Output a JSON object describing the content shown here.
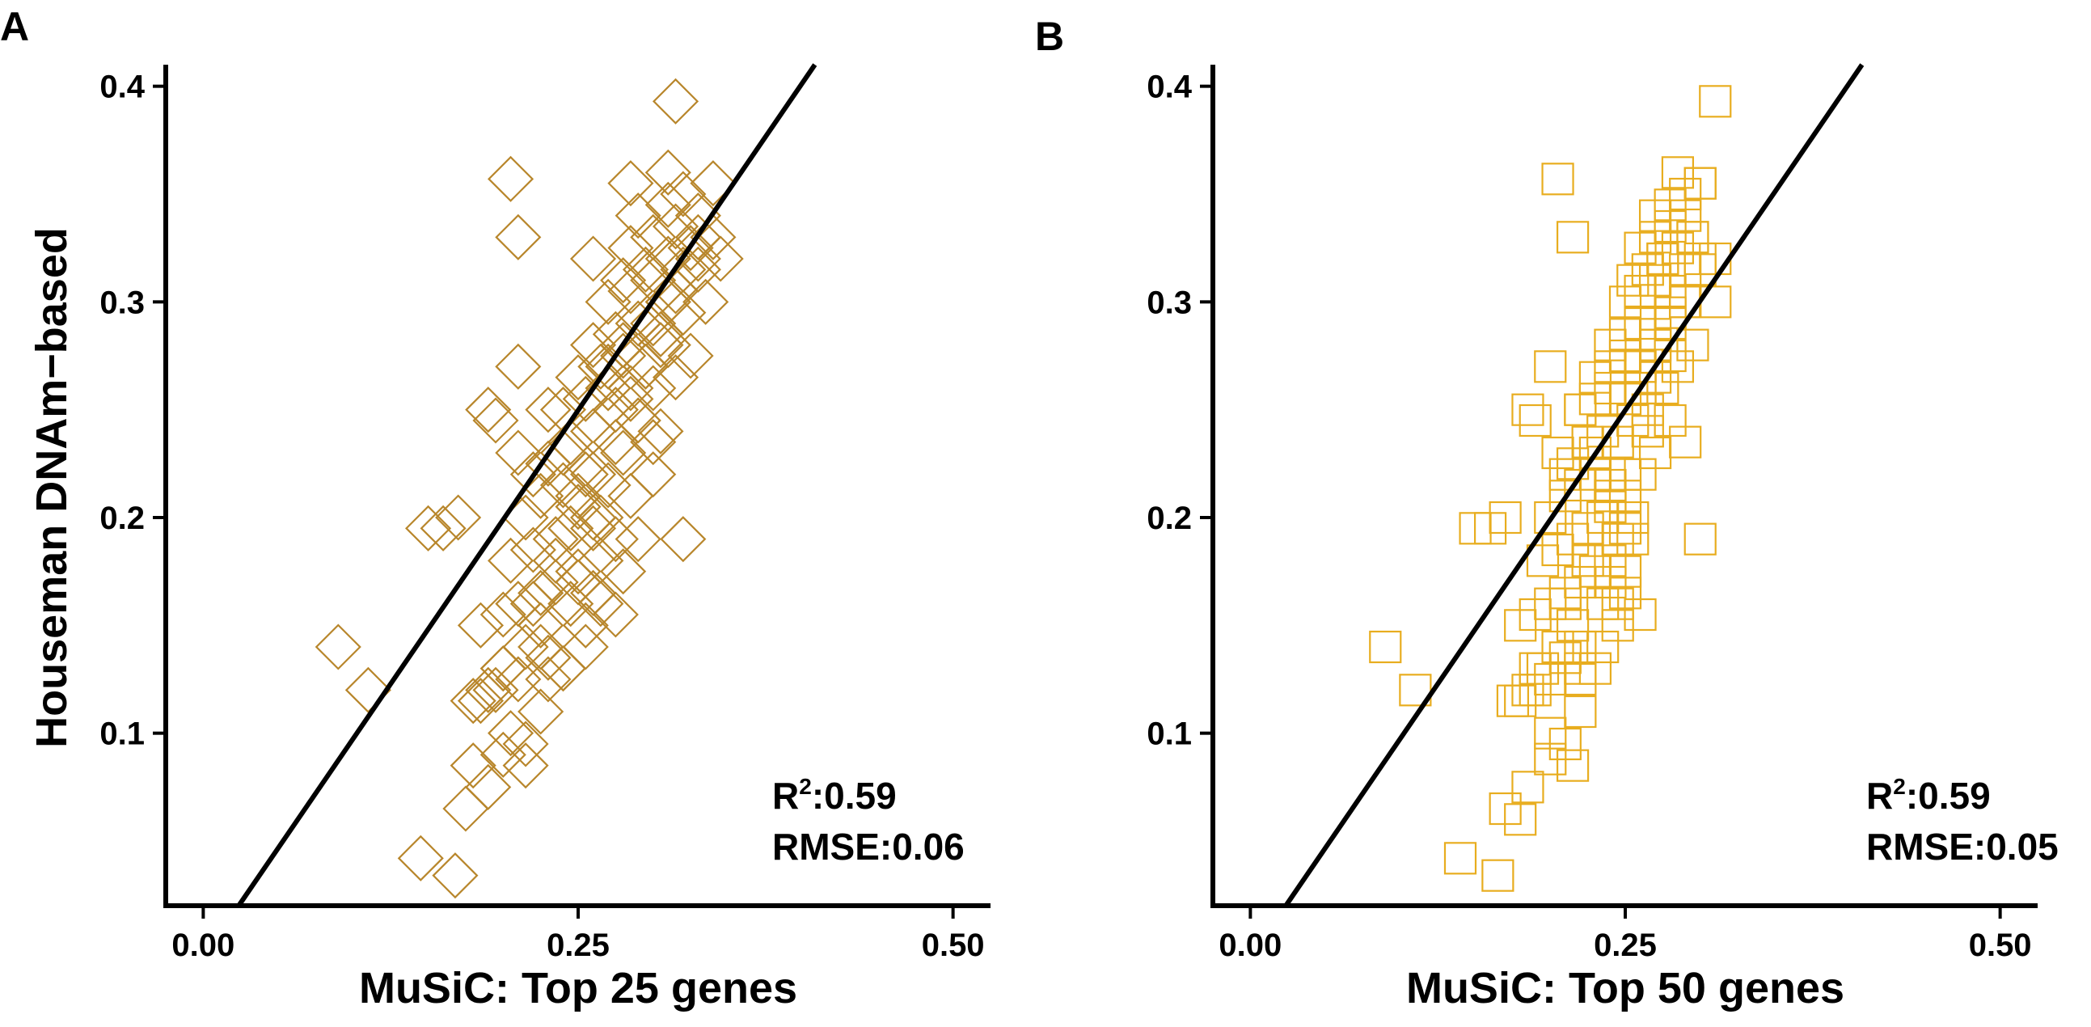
{
  "figure": {
    "ylabel": "Houseman DNAm−based",
    "colors": {
      "axis": "#000000",
      "text": "#000000",
      "fit_line": "#000000"
    }
  },
  "chart_data": [
    {
      "type": "scatter",
      "panel_label": "A",
      "xlabel": "MuSiC: Top 25 genes",
      "ylabel": "Houseman DNAm−based",
      "xlim": [
        -0.025,
        0.525
      ],
      "ylim": [
        0.02,
        0.41
      ],
      "xticks": [
        0.0,
        0.25,
        0.5
      ],
      "xtick_labels": [
        "0.00",
        "0.25",
        "0.50"
      ],
      "yticks": [
        0.1,
        0.2,
        0.3,
        0.4
      ],
      "ytick_labels": [
        "0.1",
        "0.2",
        "0.3",
        "0.4"
      ],
      "marker": "diamond-open",
      "marker_color": "#b8862b",
      "fit_line": {
        "intercept": -0.004,
        "slope": 1.015
      },
      "annotation": {
        "r2_label": "R",
        "r2_sup": "2",
        "r2_value": ":0.59",
        "rmse": "RMSE:0.06"
      },
      "grid": false,
      "x": [
        0.09,
        0.11,
        0.145,
        0.168,
        0.175,
        0.18,
        0.19,
        0.2,
        0.215,
        0.225,
        0.18,
        0.19,
        0.2,
        0.21,
        0.23,
        0.24,
        0.255,
        0.265,
        0.185,
        0.2,
        0.21,
        0.225,
        0.235,
        0.25,
        0.265,
        0.28,
        0.205,
        0.22,
        0.235,
        0.245,
        0.26,
        0.275,
        0.29,
        0.215,
        0.225,
        0.24,
        0.255,
        0.27,
        0.285,
        0.3,
        0.21,
        0.23,
        0.245,
        0.26,
        0.275,
        0.29,
        0.305,
        0.32,
        0.24,
        0.255,
        0.27,
        0.285,
        0.3,
        0.315,
        0.25,
        0.265,
        0.28,
        0.295,
        0.31,
        0.325,
        0.26,
        0.275,
        0.29,
        0.305,
        0.32,
        0.335,
        0.27,
        0.285,
        0.3,
        0.315,
        0.33,
        0.345,
        0.28,
        0.295,
        0.31,
        0.325,
        0.34,
        0.285,
        0.3,
        0.315,
        0.33,
        0.29,
        0.31,
        0.32,
        0.34,
        0.31,
        0.33,
        0.315,
        0.205,
        0.21,
        0.285,
        0.26,
        0.31,
        0.16,
        0.15,
        0.19,
        0.195,
        0.17,
        0.22,
        0.23,
        0.21,
        0.24,
        0.25,
        0.26,
        0.235,
        0.245,
        0.255,
        0.275,
        0.265,
        0.28,
        0.29,
        0.3,
        0.27,
        0.26,
        0.25,
        0.225,
        0.215,
        0.2,
        0.195,
        0.185,
        0.205,
        0.215,
        0.225,
        0.24,
        0.23,
        0.22,
        0.25,
        0.26,
        0.27,
        0.28,
        0.3,
        0.31,
        0.32,
        0.33,
        0.295,
        0.305,
        0.285,
        0.275
      ],
      "y": [
        0.14,
        0.12,
        0.042,
        0.034,
        0.065,
        0.085,
        0.075,
        0.09,
        0.085,
        0.11,
        0.115,
        0.12,
        0.13,
        0.125,
        0.135,
        0.13,
        0.14,
        0.16,
        0.15,
        0.155,
        0.16,
        0.165,
        0.17,
        0.175,
        0.18,
        0.175,
        0.18,
        0.185,
        0.19,
        0.195,
        0.2,
        0.19,
        0.19,
        0.2,
        0.21,
        0.215,
        0.22,
        0.215,
        0.21,
        0.22,
        0.23,
        0.225,
        0.235,
        0.24,
        0.235,
        0.245,
        0.24,
        0.19,
        0.25,
        0.255,
        0.26,
        0.255,
        0.26,
        0.265,
        0.265,
        0.27,
        0.275,
        0.27,
        0.28,
        0.275,
        0.28,
        0.285,
        0.29,
        0.285,
        0.295,
        0.3,
        0.3,
        0.305,
        0.31,
        0.305,
        0.315,
        0.32,
        0.31,
        0.315,
        0.32,
        0.325,
        0.33,
        0.325,
        0.33,
        0.335,
        0.34,
        0.34,
        0.345,
        0.35,
        0.355,
        0.36,
        0.33,
        0.393,
        0.357,
        0.33,
        0.355,
        0.32,
        0.3,
        0.195,
        0.195,
        0.25,
        0.245,
        0.2,
        0.22,
        0.25,
        0.27,
        0.23,
        0.205,
        0.195,
        0.18,
        0.16,
        0.15,
        0.155,
        0.2,
        0.23,
        0.245,
        0.235,
        0.26,
        0.22,
        0.21,
        0.15,
        0.14,
        0.13,
        0.12,
        0.115,
        0.1,
        0.095,
        0.14,
        0.13,
        0.125,
        0.16,
        0.17,
        0.165,
        0.27,
        0.28,
        0.29,
        0.3,
        0.315,
        0.32,
        0.27,
        0.28,
        0.26,
        0.25
      ]
    },
    {
      "type": "scatter",
      "panel_label": "B",
      "xlabel": "MuSiC: Top 50 genes",
      "ylabel": "",
      "xlim": [
        -0.025,
        0.525
      ],
      "ylim": [
        0.02,
        0.41
      ],
      "xticks": [
        0.0,
        0.25,
        0.5
      ],
      "xtick_labels": [
        "0.00",
        "0.25",
        "0.50"
      ],
      "yticks": [
        0.1,
        0.2,
        0.3,
        0.4
      ],
      "ytick_labels": [
        "0.1",
        "0.2",
        "0.3",
        "0.4"
      ],
      "marker": "square-open",
      "marker_color": "#e8ad1f",
      "fit_line": {
        "intercept": -0.004,
        "slope": 1.015
      },
      "annotation": {
        "r2_label": "R",
        "r2_sup": "2",
        "r2_value": ":0.59",
        "rmse": "RMSE:0.05"
      },
      "grid": false,
      "x": [
        0.09,
        0.11,
        0.14,
        0.165,
        0.17,
        0.18,
        0.185,
        0.2,
        0.215,
        0.22,
        0.175,
        0.185,
        0.19,
        0.2,
        0.21,
        0.22,
        0.235,
        0.245,
        0.18,
        0.19,
        0.2,
        0.21,
        0.22,
        0.23,
        0.24,
        0.25,
        0.195,
        0.205,
        0.215,
        0.225,
        0.235,
        0.245,
        0.255,
        0.2,
        0.21,
        0.22,
        0.23,
        0.24,
        0.25,
        0.26,
        0.205,
        0.215,
        0.225,
        0.235,
        0.245,
        0.255,
        0.265,
        0.3,
        0.22,
        0.23,
        0.24,
        0.25,
        0.26,
        0.27,
        0.23,
        0.24,
        0.25,
        0.26,
        0.27,
        0.28,
        0.24,
        0.25,
        0.26,
        0.27,
        0.28,
        0.29,
        0.25,
        0.26,
        0.27,
        0.28,
        0.29,
        0.3,
        0.255,
        0.265,
        0.275,
        0.285,
        0.295,
        0.26,
        0.27,
        0.28,
        0.29,
        0.27,
        0.28,
        0.29,
        0.3,
        0.285,
        0.295,
        0.31,
        0.205,
        0.215,
        0.3,
        0.275,
        0.31,
        0.15,
        0.16,
        0.185,
        0.19,
        0.17,
        0.21,
        0.22,
        0.2,
        0.23,
        0.24,
        0.25,
        0.225,
        0.235,
        0.245,
        0.26,
        0.255,
        0.27,
        0.28,
        0.29,
        0.26,
        0.25,
        0.24,
        0.215,
        0.205,
        0.195,
        0.19,
        0.18,
        0.2,
        0.21,
        0.22,
        0.23,
        0.22,
        0.21,
        0.24,
        0.25,
        0.26,
        0.27,
        0.28,
        0.29,
        0.3,
        0.31,
        0.285,
        0.295,
        0.275,
        0.265
      ],
      "y": [
        0.14,
        0.12,
        0.042,
        0.034,
        0.065,
        0.06,
        0.075,
        0.088,
        0.085,
        0.11,
        0.115,
        0.12,
        0.13,
        0.125,
        0.135,
        0.13,
        0.14,
        0.16,
        0.15,
        0.155,
        0.16,
        0.165,
        0.17,
        0.175,
        0.18,
        0.175,
        0.18,
        0.185,
        0.19,
        0.195,
        0.2,
        0.19,
        0.19,
        0.2,
        0.21,
        0.215,
        0.22,
        0.215,
        0.21,
        0.22,
        0.23,
        0.225,
        0.235,
        0.24,
        0.235,
        0.245,
        0.24,
        0.19,
        0.25,
        0.255,
        0.26,
        0.255,
        0.26,
        0.265,
        0.265,
        0.27,
        0.275,
        0.27,
        0.28,
        0.275,
        0.28,
        0.285,
        0.29,
        0.285,
        0.295,
        0.3,
        0.3,
        0.305,
        0.31,
        0.305,
        0.315,
        0.32,
        0.31,
        0.315,
        0.32,
        0.325,
        0.33,
        0.325,
        0.33,
        0.335,
        0.34,
        0.34,
        0.345,
        0.35,
        0.355,
        0.36,
        0.33,
        0.393,
        0.357,
        0.33,
        0.355,
        0.32,
        0.3,
        0.195,
        0.195,
        0.25,
        0.245,
        0.2,
        0.22,
        0.25,
        0.27,
        0.23,
        0.205,
        0.195,
        0.18,
        0.16,
        0.15,
        0.155,
        0.2,
        0.23,
        0.245,
        0.235,
        0.26,
        0.22,
        0.21,
        0.15,
        0.14,
        0.13,
        0.12,
        0.115,
        0.1,
        0.095,
        0.14,
        0.13,
        0.125,
        0.16,
        0.17,
        0.165,
        0.27,
        0.28,
        0.29,
        0.3,
        0.315,
        0.32,
        0.27,
        0.28,
        0.26,
        0.25
      ]
    }
  ]
}
